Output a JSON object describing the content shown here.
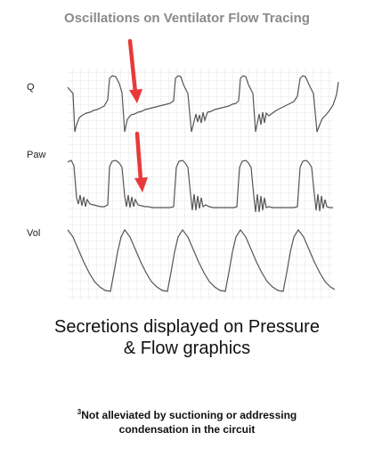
{
  "title": "Oscillations on Ventilator Flow Tracing",
  "waveforms": [
    {
      "label": "Q"
    },
    {
      "label": "Paw"
    },
    {
      "label": "Vol"
    }
  ],
  "caption": {
    "line1": "Secretions displayed on Pressure",
    "line2": "& Flow graphics"
  },
  "footnote": {
    "marker": "3",
    "line1": "Not alleviated by suctioning or addressing",
    "line2": "condensation in the circuit"
  },
  "colors": {
    "arrow": "#e83a3a",
    "trace": "#555555",
    "grid": "#e6e6e6",
    "title": "#8a8a8a"
  }
}
